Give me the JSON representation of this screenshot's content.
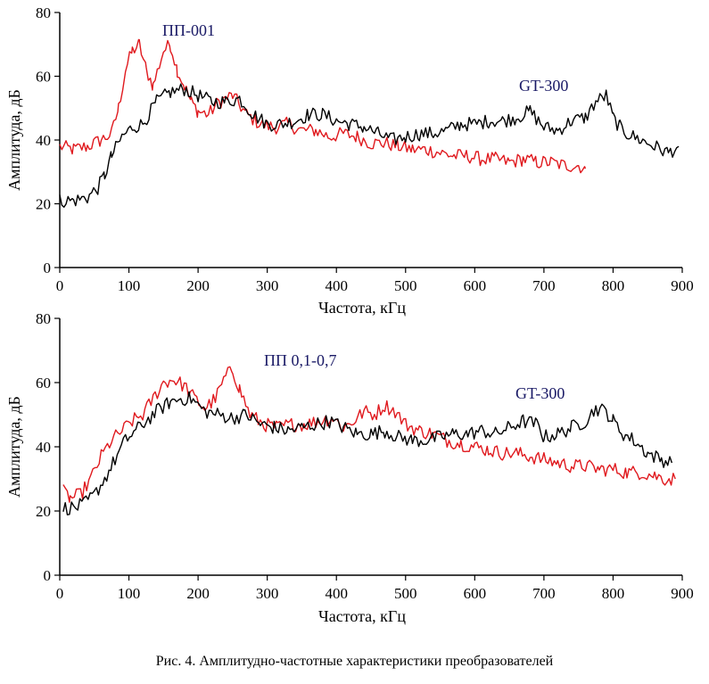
{
  "chart_data": [
    {
      "type": "line",
      "xlabel": "Частота, кГц",
      "ylabel": "Амплитуда, дБ",
      "xlim": [
        0,
        900
      ],
      "ylim": [
        0,
        80
      ],
      "x_ticks": [
        0,
        100,
        200,
        300,
        400,
        500,
        600,
        700,
        800,
        900
      ],
      "y_ticks": [
        0,
        20,
        40,
        60,
        80
      ],
      "annotations": [
        "ПП-001",
        "GT-300"
      ],
      "series": [
        {
          "name": "ПП-001",
          "color": "#e0191e",
          "points": [
            [
              0,
              38
            ],
            [
              20,
              37
            ],
            [
              40,
              38
            ],
            [
              60,
              40
            ],
            [
              75,
              42
            ],
            [
              85,
              50
            ],
            [
              95,
              62
            ],
            [
              105,
              68
            ],
            [
              115,
              70
            ],
            [
              125,
              62
            ],
            [
              135,
              57
            ],
            [
              150,
              68
            ],
            [
              160,
              70
            ],
            [
              170,
              62
            ],
            [
              180,
              57
            ],
            [
              190,
              52
            ],
            [
              200,
              49
            ],
            [
              215,
              48
            ],
            [
              230,
              52
            ],
            [
              250,
              54
            ],
            [
              270,
              48
            ],
            [
              290,
              45
            ],
            [
              310,
              44
            ],
            [
              330,
              45
            ],
            [
              350,
              43
            ],
            [
              370,
              43
            ],
            [
              390,
              41
            ],
            [
              410,
              42
            ],
            [
              430,
              41
            ],
            [
              450,
              39
            ],
            [
              470,
              39
            ],
            [
              490,
              38
            ],
            [
              510,
              37
            ],
            [
              530,
              37
            ],
            [
              550,
              36
            ],
            [
              570,
              35
            ],
            [
              590,
              35
            ],
            [
              610,
              34
            ],
            [
              630,
              34
            ],
            [
              650,
              33
            ],
            [
              670,
              34
            ],
            [
              690,
              33
            ],
            [
              710,
              33
            ],
            [
              730,
              32
            ],
            [
              750,
              32
            ],
            [
              760,
              31
            ]
          ]
        },
        {
          "name": "GT-300",
          "color": "#000000",
          "points": [
            [
              0,
              21
            ],
            [
              20,
              21
            ],
            [
              40,
              22
            ],
            [
              55,
              25
            ],
            [
              65,
              29
            ],
            [
              75,
              35
            ],
            [
              90,
              41
            ],
            [
              105,
              44
            ],
            [
              120,
              45
            ],
            [
              140,
              52
            ],
            [
              160,
              55
            ],
            [
              180,
              56
            ],
            [
              200,
              54
            ],
            [
              220,
              52
            ],
            [
              240,
              52
            ],
            [
              260,
              53
            ],
            [
              280,
              48
            ],
            [
              300,
              45
            ],
            [
              320,
              45
            ],
            [
              340,
              46
            ],
            [
              360,
              48
            ],
            [
              380,
              48
            ],
            [
              400,
              46
            ],
            [
              420,
              45
            ],
            [
              440,
              44
            ],
            [
              460,
              42
            ],
            [
              480,
              40
            ],
            [
              500,
              41
            ],
            [
              520,
              42
            ],
            [
              540,
              42
            ],
            [
              560,
              43
            ],
            [
              580,
              45
            ],
            [
              600,
              45
            ],
            [
              620,
              46
            ],
            [
              640,
              46
            ],
            [
              660,
              47
            ],
            [
              680,
              49
            ],
            [
              700,
              44
            ],
            [
              720,
              43
            ],
            [
              740,
              46
            ],
            [
              760,
              47
            ],
            [
              775,
              52
            ],
            [
              790,
              54
            ],
            [
              800,
              47
            ],
            [
              810,
              44
            ],
            [
              820,
              42
            ],
            [
              840,
              40
            ],
            [
              860,
              38
            ],
            [
              880,
              36
            ],
            [
              895,
              38
            ]
          ]
        }
      ]
    },
    {
      "type": "line",
      "xlabel": "Частота, кГц",
      "ylabel": "Амплитуда, дБ",
      "xlim": [
        0,
        900
      ],
      "ylim": [
        0,
        80
      ],
      "x_ticks": [
        0,
        100,
        200,
        300,
        400,
        500,
        600,
        700,
        800,
        900
      ],
      "y_ticks": [
        0,
        20,
        40,
        60,
        80
      ],
      "annotations": [
        "ПП 0,1-0,7",
        "GT-300"
      ],
      "series": [
        {
          "name": "ПП 0,1-0,7",
          "color": "#e0191e",
          "points": [
            [
              5,
              26
            ],
            [
              15,
              24
            ],
            [
              30,
              25
            ],
            [
              45,
              30
            ],
            [
              60,
              37
            ],
            [
              75,
              42
            ],
            [
              90,
              45
            ],
            [
              105,
              48
            ],
            [
              120,
              50
            ],
            [
              135,
              55
            ],
            [
              150,
              60
            ],
            [
              165,
              61
            ],
            [
              180,
              59
            ],
            [
              195,
              55
            ],
            [
              210,
              52
            ],
            [
              225,
              55
            ],
            [
              240,
              62
            ],
            [
              250,
              64
            ],
            [
              260,
              58
            ],
            [
              275,
              50
            ],
            [
              295,
              47
            ],
            [
              315,
              46
            ],
            [
              335,
              47
            ],
            [
              355,
              47
            ],
            [
              375,
              48
            ],
            [
              395,
              49
            ],
            [
              410,
              46
            ],
            [
              425,
              48
            ],
            [
              440,
              51
            ],
            [
              455,
              50
            ],
            [
              470,
              53
            ],
            [
              485,
              51
            ],
            [
              500,
              47
            ],
            [
              520,
              45
            ],
            [
              540,
              44
            ],
            [
              560,
              42
            ],
            [
              580,
              41
            ],
            [
              600,
              40
            ],
            [
              620,
              39
            ],
            [
              640,
              38
            ],
            [
              660,
              38
            ],
            [
              680,
              37
            ],
            [
              700,
              36
            ],
            [
              720,
              35
            ],
            [
              740,
              34
            ],
            [
              760,
              34
            ],
            [
              780,
              33
            ],
            [
              800,
              33
            ],
            [
              820,
              32
            ],
            [
              840,
              32
            ],
            [
              860,
              31
            ],
            [
              875,
              30
            ],
            [
              890,
              30
            ]
          ]
        },
        {
          "name": "GT-300",
          "color": "#000000",
          "points": [
            [
              5,
              21
            ],
            [
              20,
              21
            ],
            [
              35,
              22
            ],
            [
              50,
              25
            ],
            [
              65,
              30
            ],
            [
              80,
              36
            ],
            [
              95,
              42
            ],
            [
              110,
              45
            ],
            [
              125,
              48
            ],
            [
              140,
              51
            ],
            [
              160,
              54
            ],
            [
              175,
              55
            ],
            [
              190,
              55
            ],
            [
              210,
              51
            ],
            [
              230,
              50
            ],
            [
              250,
              49
            ],
            [
              270,
              50
            ],
            [
              290,
              47
            ],
            [
              310,
              46
            ],
            [
              330,
              45
            ],
            [
              350,
              46
            ],
            [
              370,
              47
            ],
            [
              390,
              48
            ],
            [
              410,
              46
            ],
            [
              430,
              44
            ],
            [
              450,
              44
            ],
            [
              470,
              45
            ],
            [
              490,
              43
            ],
            [
              510,
              42
            ],
            [
              530,
              42
            ],
            [
              550,
              43
            ],
            [
              570,
              44
            ],
            [
              590,
              44
            ],
            [
              610,
              45
            ],
            [
              630,
              44
            ],
            [
              650,
              46
            ],
            [
              670,
              48
            ],
            [
              690,
              47
            ],
            [
              700,
              43
            ],
            [
              720,
              44
            ],
            [
              740,
              46
            ],
            [
              760,
              48
            ],
            [
              775,
              52
            ],
            [
              790,
              51
            ],
            [
              800,
              48
            ],
            [
              815,
              44
            ],
            [
              830,
              42
            ],
            [
              850,
              38
            ],
            [
              870,
              36
            ],
            [
              885,
              35
            ]
          ]
        }
      ]
    }
  ],
  "caption": "Рис. 4. Амплитудно-частотные характеристики преобразователей"
}
